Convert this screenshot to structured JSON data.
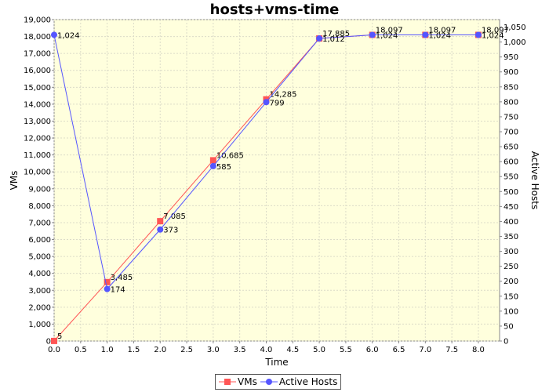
{
  "chart_data": {
    "type": "line",
    "title": "hosts+vms-time",
    "xlabel": "Time",
    "ylabel_left": "VMs",
    "ylabel_right": "Active Hosts",
    "x": [
      0.0,
      1.0,
      2.0,
      3.0,
      4.0,
      5.0,
      6.0,
      7.0,
      8.0
    ],
    "xlim": [
      0.0,
      8.4
    ],
    "xticks": [
      "0.0",
      "0.5",
      "1.0",
      "1.5",
      "2.0",
      "2.5",
      "3.0",
      "3.5",
      "4.0",
      "4.5",
      "5.0",
      "5.5",
      "6.0",
      "6.5",
      "7.0",
      "7.5",
      "8.0"
    ],
    "ylim_left": [
      0,
      19000
    ],
    "yticks_left": [
      "0",
      "1,000",
      "2,000",
      "3,000",
      "4,000",
      "5,000",
      "6,000",
      "7,000",
      "8,000",
      "9,000",
      "10,000",
      "11,000",
      "12,000",
      "13,000",
      "14,000",
      "15,000",
      "16,000",
      "17,000",
      "18,000",
      "19,000"
    ],
    "ylim_right": [
      0,
      1075
    ],
    "yticks_right": [
      "0",
      "50",
      "100",
      "150",
      "200",
      "250",
      "300",
      "350",
      "400",
      "450",
      "500",
      "550",
      "600",
      "650",
      "700",
      "750",
      "800",
      "850",
      "900",
      "950",
      "1,000",
      "1,050"
    ],
    "grid": true,
    "legend_position": "bottom",
    "series": [
      {
        "name": "VMs",
        "axis": "left",
        "color": "#ff5555",
        "marker": "square",
        "values": [
          5,
          3485,
          7085,
          10685,
          14285,
          17885,
          18097,
          18097,
          18097
        ],
        "labels": [
          "5",
          "3,485",
          "7,085",
          "10,685",
          "14,285",
          "17,885",
          "18,097",
          "18,097",
          "18,097"
        ]
      },
      {
        "name": "Active Hosts",
        "axis": "right",
        "color": "#5555ff",
        "marker": "circle",
        "values": [
          1024,
          174,
          373,
          585,
          799,
          1012,
          1024,
          1024,
          1024
        ],
        "labels": [
          "1,024",
          "174",
          "373",
          "585",
          "799",
          "1,012",
          "1,024",
          "1,024",
          "1,024"
        ]
      }
    ]
  },
  "colors": {
    "plot_background": "#ffffdd",
    "grid": "#dcdcc8"
  }
}
